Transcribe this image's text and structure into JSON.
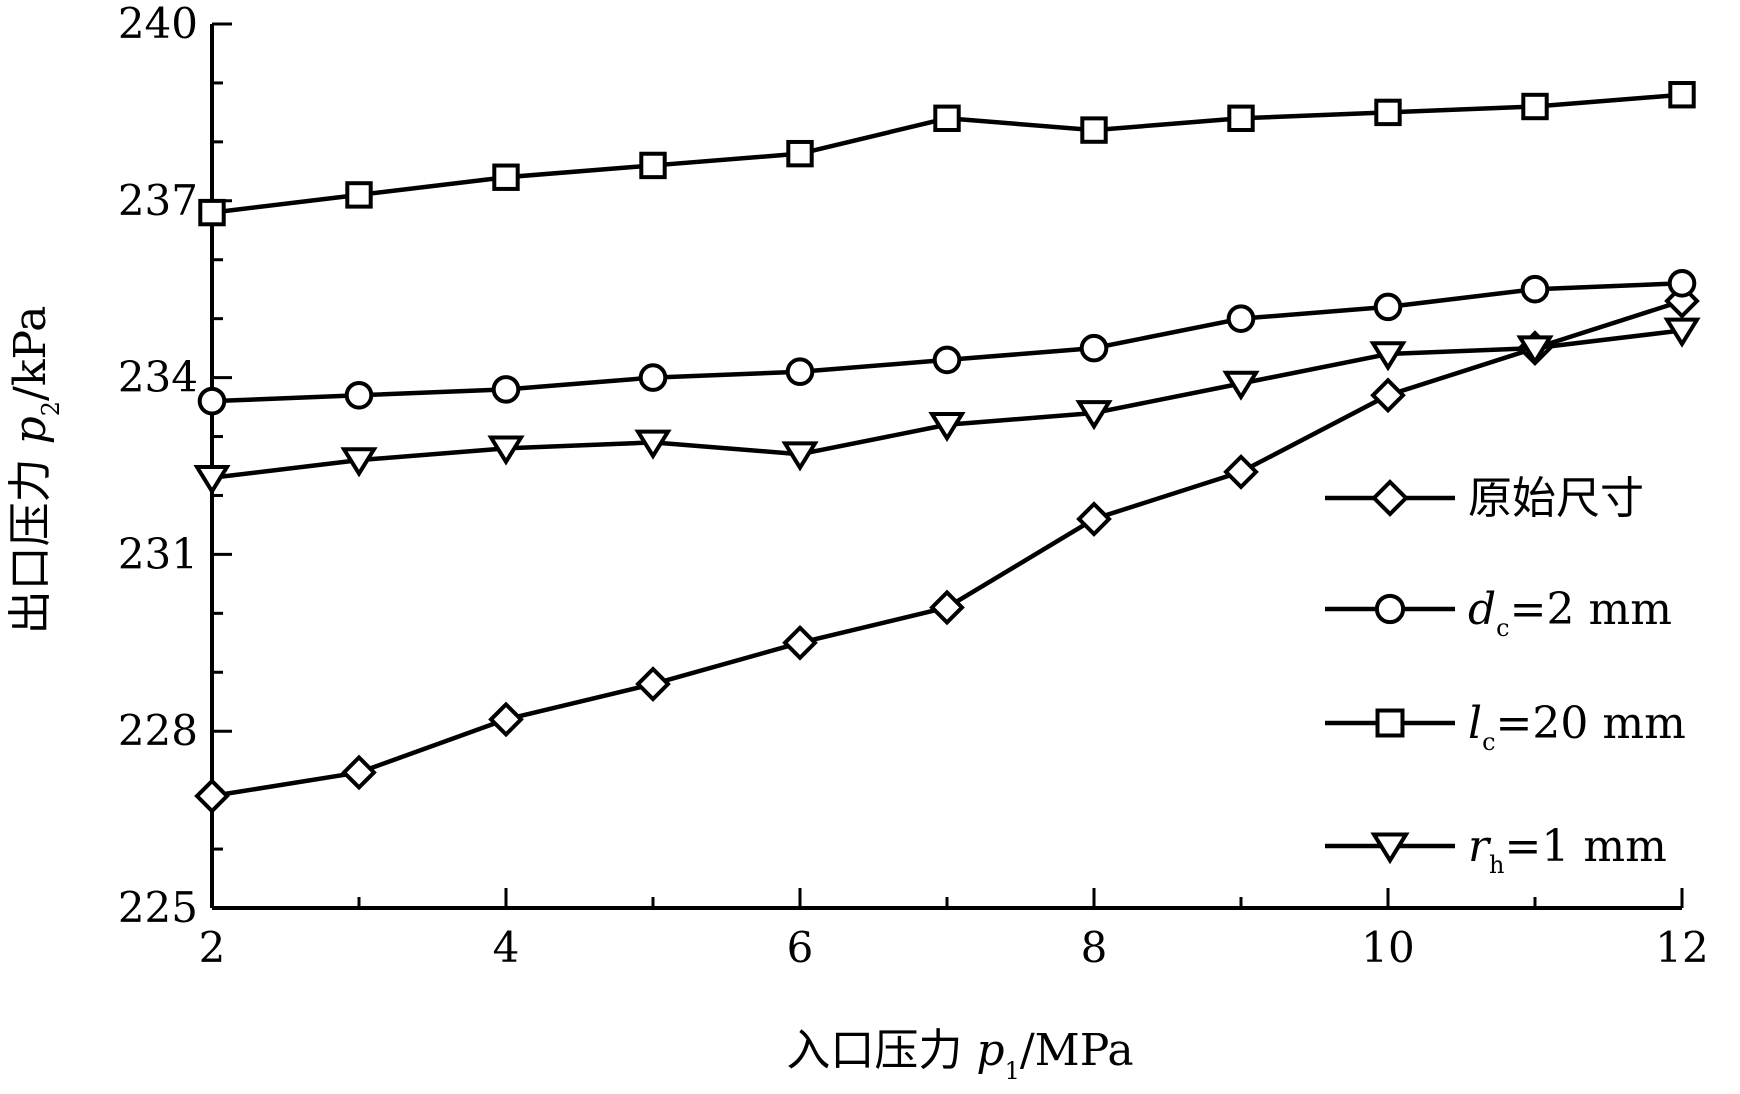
{
  "chart_data": {
    "type": "line",
    "x": [
      2,
      3,
      4,
      5,
      6,
      7,
      8,
      9,
      10,
      11,
      12
    ],
    "xlim": [
      2,
      12
    ],
    "ylim": [
      225,
      240
    ],
    "xticks": [
      "2",
      "4",
      "6",
      "8",
      "10",
      "12"
    ],
    "yticks": [
      "225",
      "228",
      "231",
      "234",
      "237",
      "240"
    ],
    "xlabel": {
      "prefix": "入口压力 ",
      "var": "p",
      "sub": "1",
      "suffix": "/MPa"
    },
    "ylabel": {
      "prefix": "出口压力 ",
      "var": "p",
      "sub": "2",
      "suffix": "/kPa"
    },
    "legend_position": "right",
    "grid": false,
    "series": [
      {
        "marker": "diamond",
        "legend": {
          "plain": "原始尺寸",
          "var": "",
          "sub": "",
          "rest": ""
        },
        "values": [
          226.9,
          227.3,
          228.2,
          228.8,
          229.5,
          230.1,
          231.6,
          232.4,
          233.7,
          234.5,
          235.3
        ]
      },
      {
        "marker": "circle",
        "legend": {
          "plain": "",
          "var": "d",
          "sub": "c",
          "rest": "=2 mm"
        },
        "values": [
          233.6,
          233.7,
          233.8,
          234.0,
          234.1,
          234.3,
          234.5,
          235.0,
          235.2,
          235.5,
          235.6
        ]
      },
      {
        "marker": "square",
        "legend": {
          "plain": "",
          "var": "l",
          "sub": "c",
          "rest": "=20 mm"
        },
        "values": [
          236.8,
          237.1,
          237.4,
          237.6,
          237.8,
          238.4,
          238.2,
          238.4,
          238.5,
          238.6,
          238.8
        ]
      },
      {
        "marker": "triangle-down",
        "legend": {
          "plain": "",
          "var": "r",
          "sub": "h",
          "rest": "=1 mm"
        },
        "values": [
          232.3,
          232.6,
          232.8,
          232.9,
          232.7,
          233.2,
          233.4,
          233.9,
          234.4,
          234.5,
          234.8
        ]
      }
    ]
  }
}
